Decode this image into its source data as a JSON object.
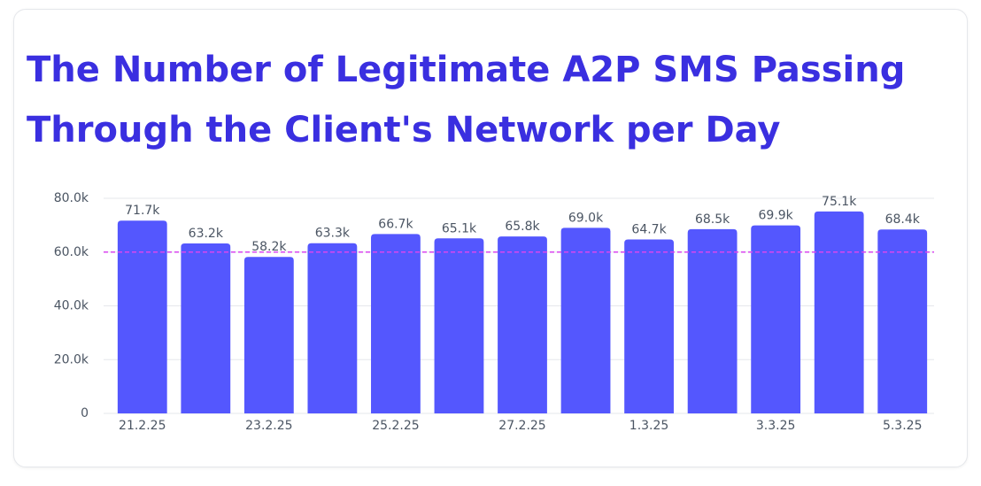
{
  "chart_data": {
    "type": "bar",
    "title": [
      "The Number of Legitimate A2P SMS Passing",
      "Through the Client's Network per Day"
    ],
    "categories": [
      "21.2.25",
      null,
      "23.2.25",
      null,
      "25.2.25",
      null,
      "27.2.25",
      null,
      "1.3.25",
      null,
      "3.3.25",
      null,
      "5.3.25"
    ],
    "values": [
      71700,
      63200,
      58200,
      63300,
      66700,
      65100,
      65800,
      69000,
      64700,
      68500,
      69900,
      75100,
      68400
    ],
    "value_labels": [
      "71.7k",
      "63.2k",
      "58.2k",
      "63.3k",
      "66.7k",
      "65.1k",
      "65.8k",
      "69.0k",
      "64.7k",
      "68.5k",
      "69.9k",
      "75.1k",
      "68.4k"
    ],
    "color": "#5457fe",
    "ylim": [
      0,
      80000
    ],
    "yticks": [
      0,
      {
        "value": 20000,
        "label": "20.0k"
      },
      {
        "value": 40000,
        "label": "40.0k"
      },
      {
        "value": 60000,
        "label": "60.0k"
      },
      {
        "value": 80000,
        "label": "80.0k"
      }
    ],
    "grid": true,
    "reference_line": {
      "value": 60000,
      "color": "#d946ef"
    }
  }
}
